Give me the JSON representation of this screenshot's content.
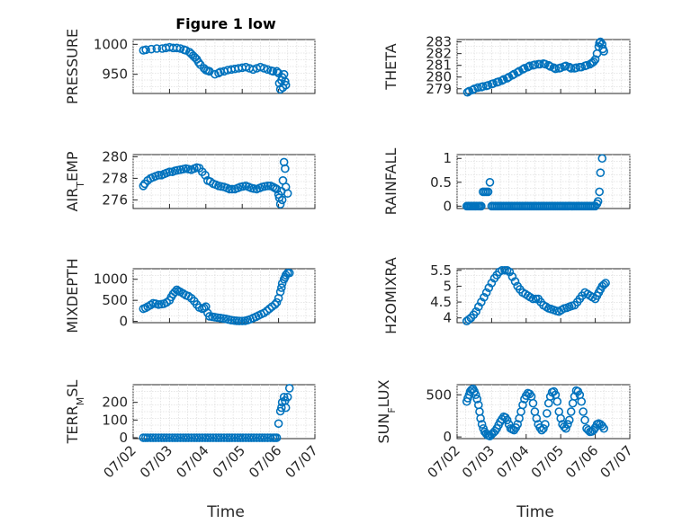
{
  "figure": {
    "title": "Figure 1 low",
    "xlabel": "Time",
    "marker_color": "#0072BD",
    "x_tick_labels": [
      "07/02",
      "07/03",
      "07/04",
      "07/05",
      "07/06",
      "07/07"
    ]
  },
  "chart_data": [
    {
      "type": "scatter",
      "name": "PRESSURE",
      "ylabel": "PRESSURE",
      "title": "Figure 1 low",
      "x_range_days": [
        0,
        5
      ],
      "ylim": [
        918,
        1008
      ],
      "y_ticks": [
        950,
        1000
      ],
      "y_tick_labels": [
        "950",
        "1000"
      ],
      "x": [
        0.28,
        0.8,
        1.0,
        1.3,
        1.55,
        1.75,
        1.95,
        2.1,
        2.25,
        2.5,
        2.7,
        2.9,
        3.1,
        3.3,
        3.5,
        3.7,
        3.85,
        3.95,
        4.0,
        4.02,
        4.05,
        4.1,
        4.15,
        4.2
      ],
      "y": [
        990,
        993,
        995,
        993,
        987,
        975,
        960,
        955,
        950,
        955,
        958,
        960,
        962,
        958,
        962,
        958,
        955,
        955,
        952,
        935,
        925,
        945,
        950,
        932
      ],
      "extra_x": [
        0.35,
        0.5,
        0.65,
        0.9,
        1.1,
        1.2,
        1.4,
        1.45,
        1.6,
        1.65,
        1.7,
        1.8,
        1.85,
        2.0,
        2.05,
        2.35,
        2.4,
        2.6,
        2.8,
        3.0,
        3.2,
        3.4,
        3.6,
        3.8,
        4.08,
        4.12,
        4.18
      ],
      "extra_y": [
        991,
        992,
        993,
        994,
        994,
        994,
        991,
        990,
        984,
        981,
        978,
        970,
        966,
        957,
        956,
        952,
        954,
        957,
        959,
        961,
        960,
        960,
        960,
        956,
        940,
        928,
        938
      ]
    },
    {
      "type": "scatter",
      "name": "THETA",
      "ylabel": "THETA",
      "x_range_days": [
        0,
        5
      ],
      "ylim": [
        278.6,
        283.2
      ],
      "y_ticks": [
        279,
        280,
        281,
        282,
        283
      ],
      "y_tick_labels": [
        "279",
        "280",
        "281",
        "282",
        "283"
      ],
      "x": [
        0.3,
        0.45,
        0.6,
        0.75,
        0.9,
        1.05,
        1.2,
        1.35,
        1.5,
        1.65,
        1.8,
        1.95,
        2.1,
        2.25,
        2.4,
        2.55,
        2.7,
        2.85,
        3.0,
        3.15,
        3.3,
        3.45,
        3.6,
        3.75,
        3.9,
        4.0,
        4.05,
        4.1,
        4.15,
        4.2,
        4.25
      ],
      "y": [
        278.7,
        278.9,
        279.1,
        279.2,
        279.3,
        279.45,
        279.6,
        279.8,
        280.0,
        280.25,
        280.5,
        280.75,
        280.95,
        281.05,
        281.1,
        281.1,
        280.9,
        280.7,
        280.8,
        280.95,
        280.75,
        280.8,
        280.85,
        281.0,
        281.2,
        281.5,
        282.0,
        282.6,
        283.0,
        282.8,
        282.2
      ],
      "extra_x": [
        0.35,
        0.5,
        0.7,
        0.85,
        1.0,
        1.15,
        1.3,
        1.45,
        1.6,
        1.75,
        1.9,
        2.05,
        2.2,
        2.35,
        2.5,
        2.65,
        2.8,
        2.95,
        3.1,
        3.25,
        3.4,
        3.55,
        3.7,
        3.85,
        3.95,
        4.12,
        4.22
      ],
      "extra_y": [
        278.8,
        279.0,
        279.15,
        279.25,
        279.4,
        279.55,
        279.7,
        279.9,
        280.15,
        280.4,
        280.65,
        280.85,
        281.0,
        281.1,
        281.15,
        281.0,
        280.8,
        280.75,
        280.9,
        280.85,
        280.75,
        280.85,
        280.95,
        281.1,
        281.3,
        282.9,
        282.4
      ]
    },
    {
      "type": "scatter",
      "name": "AIR_TEMP",
      "ylabel": "AIR_TEMP",
      "x_range_days": [
        0,
        5
      ],
      "ylim": [
        275.2,
        280.2
      ],
      "y_ticks": [
        276,
        278,
        280
      ],
      "y_tick_labels": [
        "276",
        "278",
        "280"
      ],
      "x": [
        0.28,
        0.4,
        0.55,
        0.7,
        0.85,
        1.0,
        1.15,
        1.3,
        1.45,
        1.6,
        1.75,
        1.9,
        2.05,
        2.2,
        2.35,
        2.5,
        2.65,
        2.8,
        2.95,
        3.1,
        3.25,
        3.4,
        3.55,
        3.7,
        3.85,
        3.95,
        4.0,
        4.05,
        4.08,
        4.12,
        4.15,
        4.2,
        4.25
      ],
      "y": [
        277.3,
        277.8,
        278.1,
        278.3,
        278.4,
        278.6,
        278.7,
        278.8,
        278.9,
        278.8,
        279.0,
        278.6,
        277.8,
        277.5,
        277.3,
        277.2,
        277.0,
        277.0,
        277.2,
        277.3,
        277.1,
        277.0,
        277.2,
        277.3,
        277.2,
        277.0,
        276.5,
        275.6,
        276.8,
        277.8,
        279.5,
        277.2,
        276.6
      ],
      "extra_x": [
        0.32,
        0.48,
        0.62,
        0.78,
        0.92,
        1.08,
        1.22,
        1.38,
        1.52,
        1.68,
        1.82,
        1.98,
        2.12,
        2.28,
        2.42,
        2.58,
        2.72,
        2.88,
        3.02,
        3.18,
        3.32,
        3.48,
        3.62,
        3.78,
        3.9,
        4.02,
        4.1,
        4.18
      ],
      "extra_y": [
        277.5,
        278.0,
        278.2,
        278.3,
        278.5,
        278.6,
        278.75,
        278.85,
        278.85,
        278.9,
        278.95,
        278.3,
        277.7,
        277.4,
        277.25,
        277.1,
        277.0,
        277.1,
        277.25,
        277.2,
        277.05,
        277.1,
        277.25,
        277.3,
        277.1,
        276.2,
        276.0,
        278.9
      ]
    },
    {
      "type": "scatter",
      "name": "RAINFALL",
      "ylabel": "RAINFALL",
      "x_range_days": [
        0,
        5
      ],
      "ylim": [
        -0.05,
        1.08
      ],
      "y_ticks": [
        0,
        0.5,
        1
      ],
      "y_tick_labels": [
        "0",
        "0.5",
        "1"
      ],
      "x": [
        0.28,
        0.4,
        0.55,
        0.7,
        0.75,
        0.8,
        0.85,
        0.9,
        0.95,
        1.0,
        1.1,
        1.3,
        1.5,
        1.7,
        1.9,
        2.1,
        2.3,
        2.5,
        2.7,
        2.9,
        3.1,
        3.3,
        3.5,
        3.7,
        3.9,
        4.0,
        4.05,
        4.08,
        4.12,
        4.15,
        4.2
      ],
      "y": [
        0,
        0,
        0,
        0,
        0.3,
        0.3,
        0.3,
        0.3,
        0.5,
        0,
        0,
        0,
        0,
        0,
        0,
        0,
        0,
        0,
        0,
        0,
        0,
        0,
        0,
        0,
        0,
        0,
        0.05,
        0.1,
        0.3,
        0.7,
        1.0
      ],
      "extra_x": [
        0.32,
        0.36,
        0.44,
        0.48,
        0.52,
        0.6,
        0.64,
        0.68,
        1.05,
        1.15,
        1.2,
        1.25,
        1.35,
        1.4,
        1.45,
        1.55,
        1.6,
        1.65,
        1.75,
        1.8,
        1.85,
        1.95,
        2.0,
        2.05,
        2.15,
        2.2,
        2.25,
        2.35,
        2.4,
        2.45,
        2.55,
        2.6,
        2.65,
        2.75,
        2.8,
        2.85,
        2.95,
        3.0,
        3.05,
        3.15,
        3.2,
        3.25,
        3.35,
        3.4,
        3.45,
        3.55,
        3.6,
        3.65,
        3.75,
        3.8,
        3.85,
        3.95
      ],
      "extra_y": [
        0,
        0,
        0,
        0,
        0,
        0,
        0,
        0,
        0,
        0,
        0,
        0,
        0,
        0,
        0,
        0,
        0,
        0,
        0,
        0,
        0,
        0,
        0,
        0,
        0,
        0,
        0,
        0,
        0,
        0,
        0,
        0,
        0,
        0,
        0,
        0,
        0,
        0,
        0,
        0,
        0,
        0,
        0,
        0,
        0,
        0,
        0,
        0,
        0,
        0,
        0,
        0
      ]
    },
    {
      "type": "scatter",
      "name": "MIXDEPTH",
      "ylabel": "MIXDEPTH",
      "x_range_days": [
        0,
        5
      ],
      "ylim": [
        -30,
        1250
      ],
      "y_ticks": [
        0,
        500,
        1000
      ],
      "y_tick_labels": [
        "0",
        "500",
        "1000"
      ],
      "x": [
        0.28,
        0.4,
        0.55,
        0.7,
        0.85,
        1.0,
        1.1,
        1.2,
        1.3,
        1.45,
        1.6,
        1.75,
        1.9,
        2.0,
        2.1,
        2.25,
        2.4,
        2.55,
        2.7,
        2.85,
        3.0,
        3.15,
        3.3,
        3.45,
        3.6,
        3.75,
        3.9,
        4.0,
        4.05,
        4.1,
        4.15,
        4.2,
        4.25,
        4.3
      ],
      "y": [
        300,
        350,
        430,
        400,
        420,
        500,
        650,
        750,
        700,
        620,
        550,
        400,
        300,
        350,
        120,
        100,
        80,
        60,
        30,
        15,
        10,
        30,
        80,
        140,
        200,
        300,
        400,
        550,
        700,
        900,
        1000,
        1100,
        1150,
        1150
      ],
      "extra_x": [
        0.34,
        0.48,
        0.62,
        0.78,
        0.92,
        1.05,
        1.15,
        1.25,
        1.38,
        1.52,
        1.68,
        1.82,
        1.95,
        2.05,
        2.18,
        2.32,
        2.48,
        2.62,
        2.78,
        2.92,
        3.08,
        3.22,
        3.38,
        3.52,
        3.68,
        3.82,
        3.95,
        4.08,
        4.18
      ],
      "extra_y": [
        320,
        390,
        420,
        410,
        450,
        580,
        700,
        720,
        660,
        600,
        480,
        330,
        320,
        200,
        110,
        90,
        70,
        45,
        20,
        10,
        15,
        50,
        110,
        170,
        250,
        350,
        450,
        800,
        1050
      ]
    },
    {
      "type": "scatter",
      "name": "H2OMIXRA",
      "ylabel": "H2OMIXRA",
      "x_range_days": [
        0,
        5
      ],
      "ylim": [
        3.85,
        5.55
      ],
      "y_ticks": [
        4,
        4.5,
        5,
        5.5
      ],
      "y_tick_labels": [
        "4",
        "4.5",
        "5",
        "5.5"
      ],
      "x": [
        0.28,
        0.4,
        0.55,
        0.7,
        0.85,
        1.0,
        1.15,
        1.3,
        1.45,
        1.6,
        1.75,
        1.9,
        2.05,
        2.2,
        2.35,
        2.5,
        2.65,
        2.8,
        2.95,
        3.1,
        3.25,
        3.4,
        3.55,
        3.7,
        3.85,
        4.0,
        4.1,
        4.2,
        4.3
      ],
      "y": [
        3.9,
        4.0,
        4.2,
        4.5,
        4.8,
        5.1,
        5.35,
        5.5,
        5.5,
        5.3,
        5.0,
        4.8,
        4.7,
        4.6,
        4.6,
        4.4,
        4.3,
        4.25,
        4.2,
        4.3,
        4.35,
        4.4,
        4.6,
        4.8,
        4.7,
        4.6,
        4.8,
        5.0,
        5.1
      ],
      "extra_x": [
        0.34,
        0.48,
        0.62,
        0.78,
        0.92,
        1.08,
        1.22,
        1.38,
        1.52,
        1.68,
        1.82,
        1.98,
        2.12,
        2.28,
        2.42,
        2.58,
        2.72,
        2.88,
        3.02,
        3.18,
        3.32,
        3.48,
        3.62,
        3.78,
        3.92,
        4.05,
        4.15,
        4.25
      ],
      "extra_y": [
        3.95,
        4.1,
        4.35,
        4.65,
        4.95,
        5.25,
        5.45,
        5.5,
        5.45,
        5.15,
        4.9,
        4.75,
        4.65,
        4.6,
        4.5,
        4.35,
        4.28,
        4.22,
        4.25,
        4.32,
        4.38,
        4.5,
        4.7,
        4.75,
        4.65,
        4.7,
        4.9,
        5.05
      ]
    },
    {
      "type": "scatter",
      "name": "TERR_MSL",
      "ylabel": "TERR_MSL",
      "x_range_days": [
        0,
        5
      ],
      "ylim": [
        -5,
        300
      ],
      "y_ticks": [
        0,
        100,
        200
      ],
      "y_tick_labels": [
        "0",
        "100",
        "200"
      ],
      "x": [
        0.28,
        0.4,
        0.55,
        0.7,
        0.85,
        1.0,
        1.15,
        1.3,
        1.45,
        1.6,
        1.75,
        1.9,
        2.05,
        2.2,
        2.35,
        2.5,
        2.65,
        2.8,
        2.95,
        3.1,
        3.25,
        3.4,
        3.55,
        3.7,
        3.85,
        3.95,
        4.0,
        4.05,
        4.1,
        4.15,
        4.2,
        4.25,
        4.3
      ],
      "y": [
        0,
        0,
        0,
        0,
        0,
        0,
        0,
        0,
        0,
        0,
        0,
        0,
        0,
        0,
        0,
        0,
        0,
        0,
        0,
        0,
        0,
        0,
        0,
        0,
        0,
        0,
        80,
        150,
        200,
        230,
        170,
        230,
        280
      ],
      "extra_x": [
        0.34,
        0.48,
        0.62,
        0.78,
        0.92,
        1.08,
        1.22,
        1.38,
        1.52,
        1.68,
        1.82,
        1.98,
        2.12,
        2.28,
        2.42,
        2.58,
        2.72,
        2.88,
        3.02,
        3.18,
        3.32,
        3.48,
        3.62,
        3.78,
        3.9,
        4.08,
        4.18
      ],
      "extra_y": [
        0,
        0,
        0,
        0,
        0,
        0,
        0,
        0,
        0,
        0,
        0,
        0,
        0,
        0,
        0,
        0,
        0,
        0,
        0,
        0,
        0,
        0,
        0,
        0,
        0,
        170,
        210
      ]
    },
    {
      "type": "scatter",
      "name": "SUN_FLUX",
      "ylabel": "SUN_FLUX",
      "x_range_days": [
        0,
        5
      ],
      "ylim": [
        -20,
        620
      ],
      "y_ticks": [
        0,
        500
      ],
      "y_tick_labels": [
        "0",
        "500"
      ],
      "x": [
        0.28,
        0.35,
        0.42,
        0.5,
        0.58,
        0.65,
        0.72,
        0.8,
        0.88,
        0.95,
        1.05,
        1.15,
        1.25,
        1.35,
        1.45,
        1.55,
        1.65,
        1.75,
        1.85,
        1.95,
        2.05,
        2.15,
        2.25,
        2.35,
        2.45,
        2.55,
        2.65,
        2.75,
        2.85,
        2.95,
        3.05,
        3.15,
        3.25,
        3.35,
        3.45,
        3.55,
        3.65,
        3.75,
        3.85,
        3.95,
        4.05,
        4.15,
        4.25
      ],
      "y": [
        420,
        500,
        560,
        540,
        450,
        300,
        150,
        60,
        20,
        10,
        50,
        100,
        180,
        240,
        200,
        100,
        80,
        150,
        300,
        450,
        520,
        480,
        300,
        150,
        80,
        150,
        400,
        530,
        500,
        300,
        150,
        100,
        200,
        400,
        550,
        500,
        300,
        100,
        60,
        80,
        150,
        150,
        100
      ],
      "extra_x": [
        0.31,
        0.38,
        0.46,
        0.54,
        0.62,
        0.68,
        0.76,
        0.84,
        0.92,
        1.0,
        1.1,
        1.2,
        1.3,
        1.4,
        1.5,
        1.6,
        1.7,
        1.8,
        1.9,
        2.0,
        2.1,
        2.2,
        2.3,
        2.4,
        2.5,
        2.6,
        2.7,
        2.8,
        2.9,
        3.0,
        3.1,
        3.2,
        3.3,
        3.4,
        3.5,
        3.6,
        3.7,
        3.8,
        3.9,
        4.0,
        4.1,
        4.2
      ],
      "extra_y": [
        460,
        540,
        570,
        500,
        380,
        220,
        100,
        40,
        15,
        30,
        70,
        140,
        210,
        230,
        150,
        90,
        110,
        220,
        380,
        490,
        510,
        400,
        220,
        110,
        100,
        280,
        480,
        540,
        420,
        220,
        120,
        150,
        300,
        480,
        540,
        420,
        200,
        80,
        65,
        110,
        160,
        130
      ]
    }
  ]
}
